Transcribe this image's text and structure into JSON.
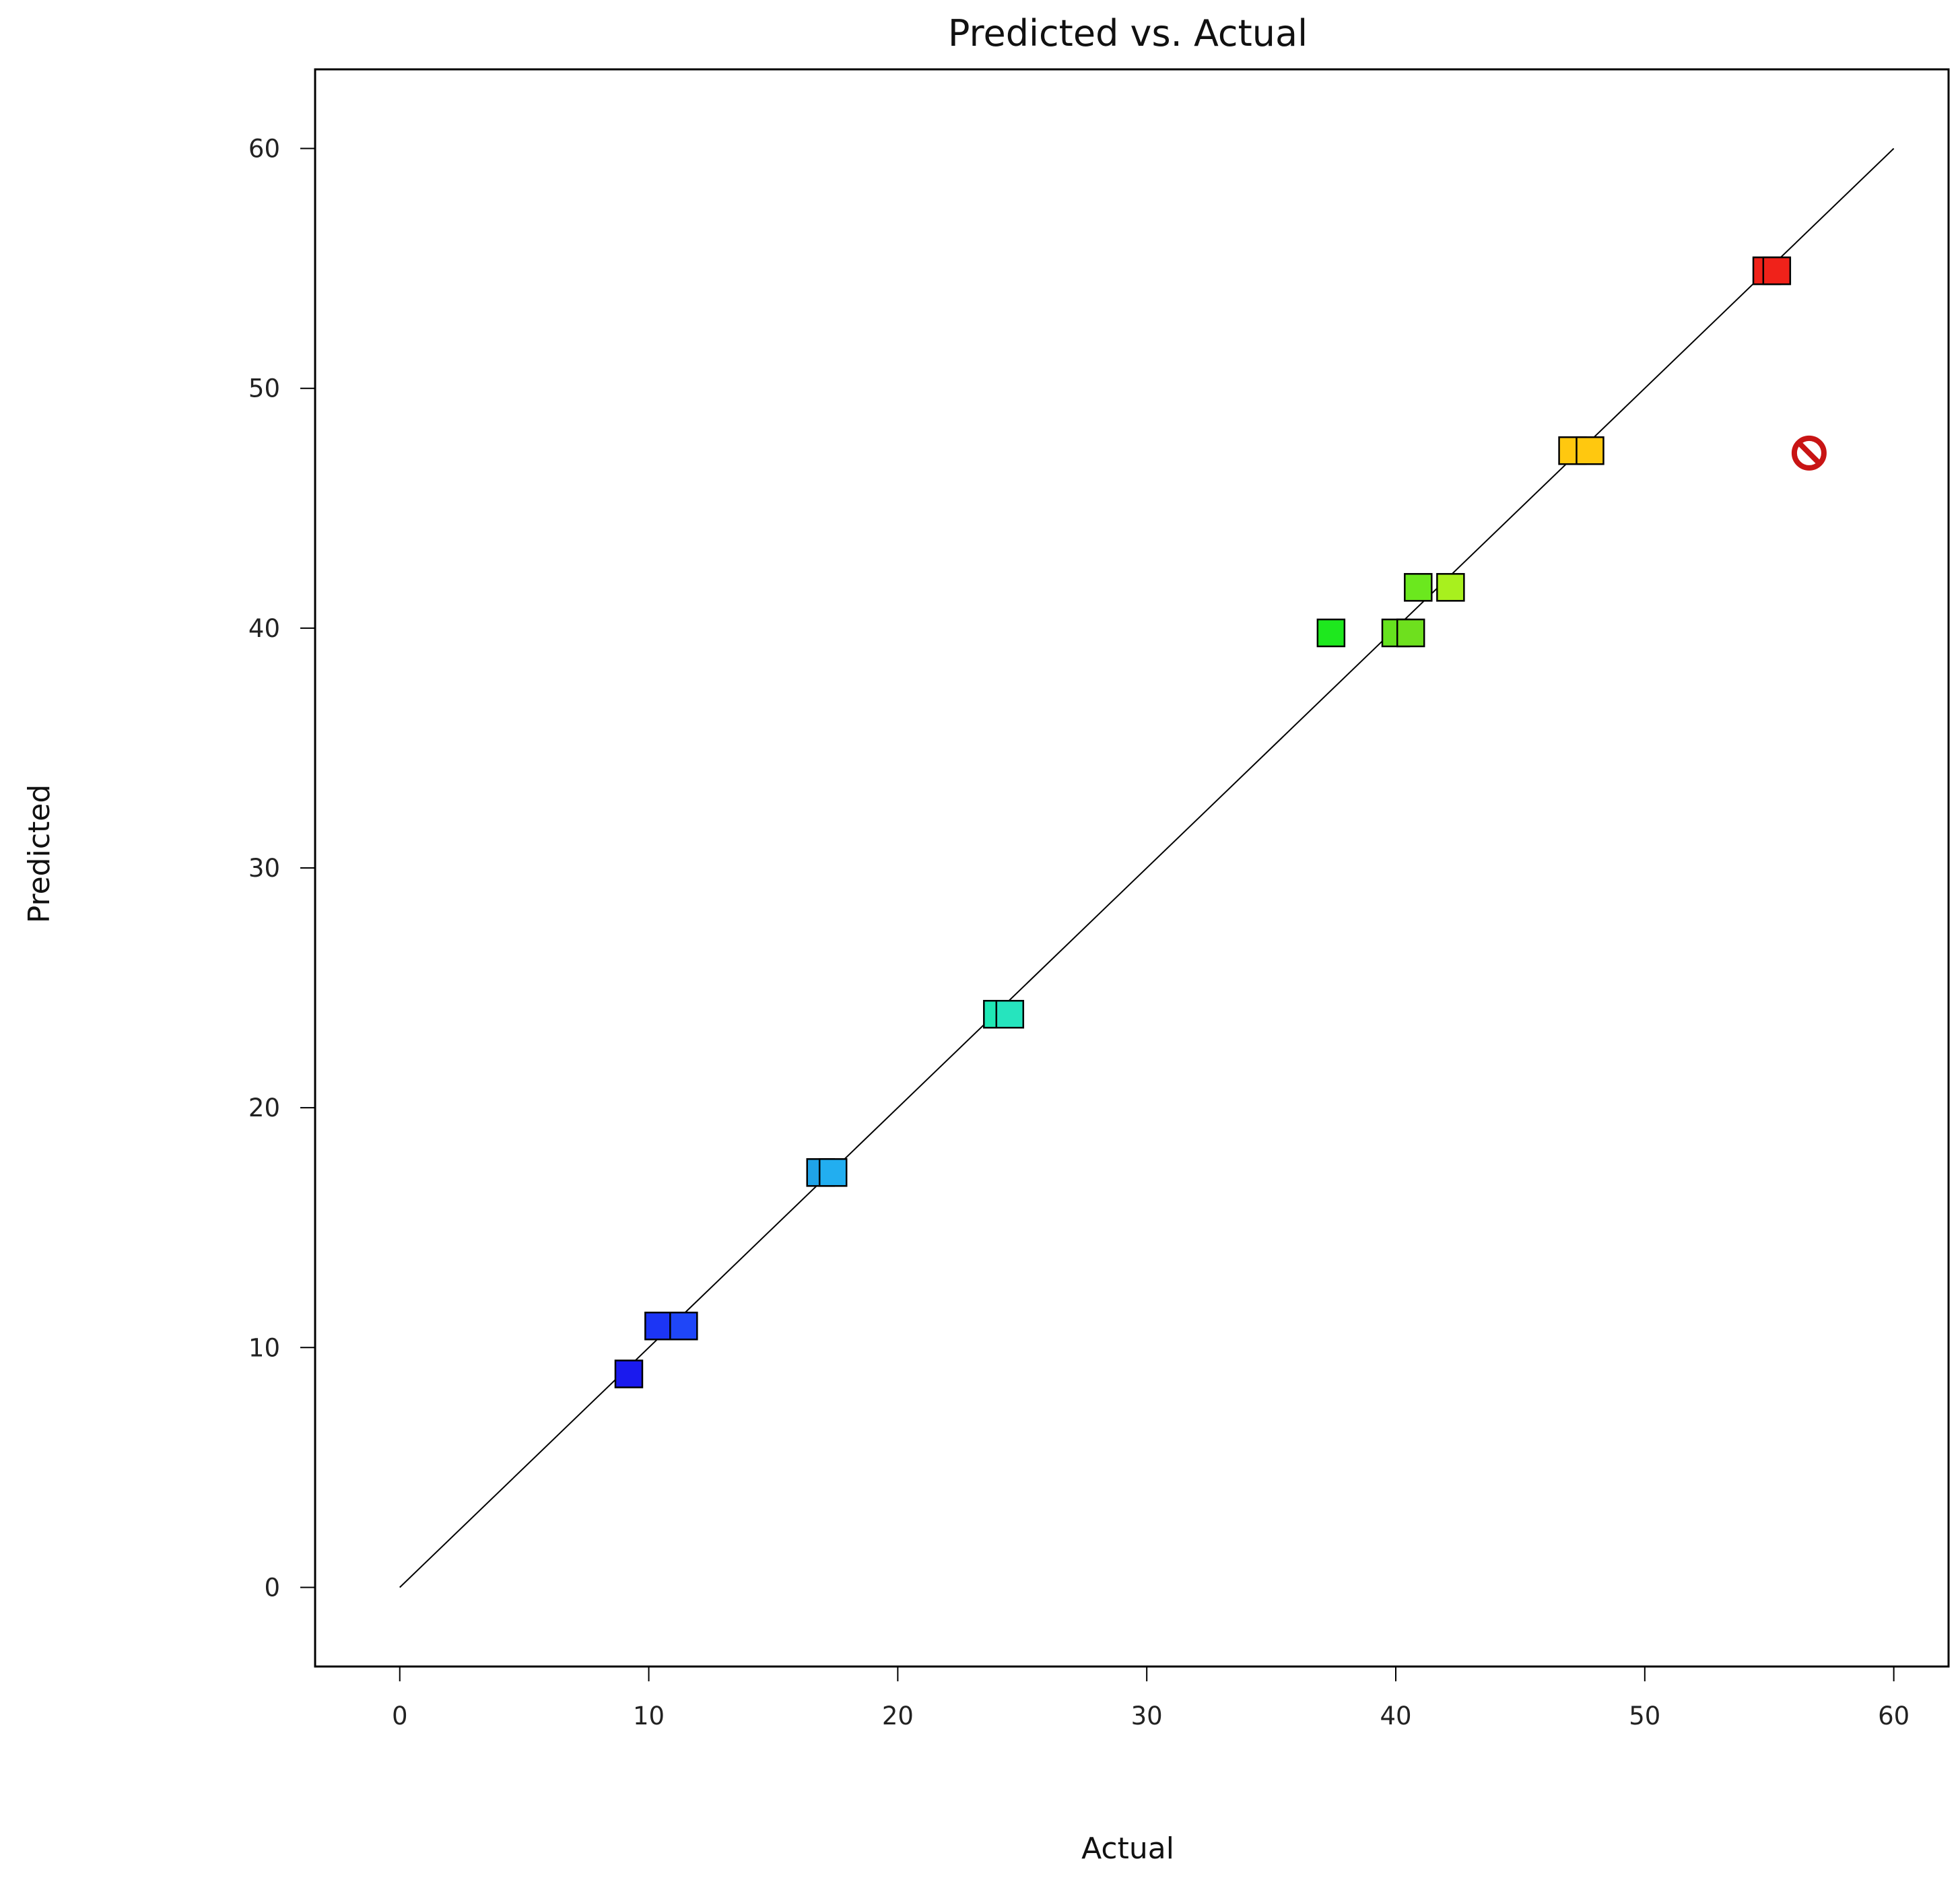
{
  "chart_data": {
    "type": "scatter",
    "title": "Predicted vs. Actual",
    "xlabel": "Actual",
    "ylabel": "Predicted",
    "xlim": [
      -3.4,
      62.2
    ],
    "ylim": [
      -3.3,
      63.3
    ],
    "xticks": [
      0,
      10,
      20,
      30,
      40,
      50,
      60
    ],
    "yticks": [
      0,
      10,
      20,
      30,
      40,
      50,
      60
    ],
    "reference_line": {
      "from": [
        0,
        0
      ],
      "to": [
        60,
        60
      ]
    },
    "points": [
      {
        "x": 9.2,
        "y": 8.9,
        "color": "#1a1aee"
      },
      {
        "x": 10.4,
        "y": 10.9,
        "color": "#1c35f5"
      },
      {
        "x": 11.4,
        "y": 10.9,
        "color": "#1f46f8"
      },
      {
        "x": 16.9,
        "y": 17.3,
        "color": "#1fa3e8"
      },
      {
        "x": 17.4,
        "y": 17.3,
        "color": "#22aef0"
      },
      {
        "x": 24.0,
        "y": 23.9,
        "color": "#1fe8b5"
      },
      {
        "x": 24.5,
        "y": 23.9,
        "color": "#26e4be"
      },
      {
        "x": 37.4,
        "y": 39.8,
        "color": "#1ee81e"
      },
      {
        "x": 40.0,
        "y": 39.8,
        "color": "#66e31e"
      },
      {
        "x": 40.6,
        "y": 39.8,
        "color": "#6ee01e"
      },
      {
        "x": 40.9,
        "y": 41.7,
        "color": "#6be81e"
      },
      {
        "x": 42.2,
        "y": 41.7,
        "color": "#a8f01e"
      },
      {
        "x": 47.1,
        "y": 47.4,
        "color": "#ffc80f"
      },
      {
        "x": 47.8,
        "y": 47.4,
        "color": "#ffc80f"
      },
      {
        "x": 54.9,
        "y": 54.9,
        "color": "#f0221a"
      },
      {
        "x": 55.3,
        "y": 54.9,
        "color": "#f0221a"
      }
    ],
    "excluded_points": [
      {
        "x": 56.6,
        "y": 47.3,
        "color": "#c81414"
      }
    ],
    "grid": false,
    "legend": "none"
  }
}
